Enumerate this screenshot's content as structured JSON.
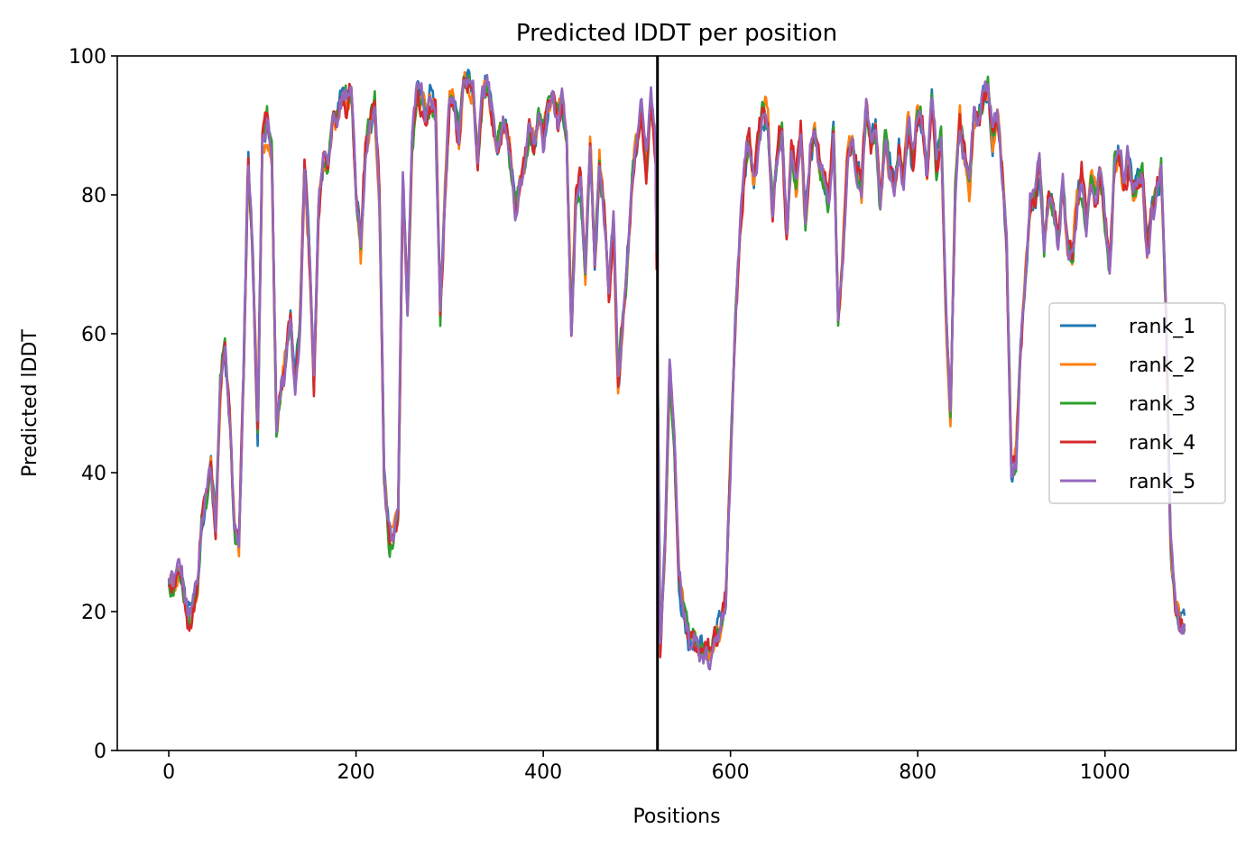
{
  "chart_data": {
    "type": "line",
    "title": "Predicted lDDT per position",
    "xlabel": "Positions",
    "ylabel": "Predicted lDDT",
    "xlim": [
      -55,
      1140
    ],
    "ylim": [
      0,
      100
    ],
    "xticks": [
      0,
      200,
      400,
      600,
      800,
      1000
    ],
    "yticks": [
      0,
      20,
      40,
      60,
      80,
      100
    ],
    "xtick_labels": [
      "0",
      "200",
      "400",
      "600",
      "800",
      "1000"
    ],
    "ytick_labels": [
      "0",
      "20",
      "40",
      "60",
      "80",
      "100"
    ],
    "vline_x": 522,
    "grid": false,
    "legend_position": "center-right",
    "base_profile": {
      "x": [
        0,
        5,
        10,
        15,
        20,
        25,
        30,
        35,
        40,
        45,
        50,
        55,
        60,
        65,
        70,
        75,
        80,
        85,
        90,
        95,
        100,
        105,
        110,
        115,
        120,
        125,
        130,
        135,
        140,
        145,
        150,
        155,
        160,
        165,
        170,
        175,
        180,
        185,
        190,
        195,
        200,
        205,
        210,
        215,
        220,
        225,
        230,
        235,
        240,
        245,
        250,
        255,
        260,
        265,
        270,
        275,
        280,
        285,
        290,
        295,
        300,
        305,
        310,
        315,
        320,
        325,
        330,
        335,
        340,
        345,
        350,
        355,
        360,
        365,
        370,
        375,
        380,
        385,
        390,
        395,
        400,
        405,
        410,
        415,
        420,
        425,
        430,
        435,
        440,
        445,
        450,
        455,
        460,
        465,
        470,
        475,
        480,
        485,
        490,
        495,
        500,
        505,
        510,
        515,
        520,
        525,
        530,
        535,
        540,
        545,
        550,
        555,
        560,
        565,
        570,
        575,
        580,
        585,
        590,
        595,
        600,
        605,
        610,
        615,
        620,
        625,
        630,
        635,
        640,
        645,
        650,
        655,
        660,
        665,
        670,
        675,
        680,
        685,
        690,
        695,
        700,
        705,
        710,
        715,
        720,
        725,
        730,
        735,
        740,
        745,
        750,
        755,
        760,
        765,
        770,
        775,
        780,
        785,
        790,
        795,
        800,
        805,
        810,
        815,
        820,
        825,
        830,
        835,
        840,
        845,
        850,
        855,
        860,
        865,
        870,
        875,
        880,
        885,
        890,
        895,
        900,
        905,
        910,
        915,
        920,
        925,
        930,
        935,
        940,
        945,
        950,
        955,
        960,
        965,
        970,
        975,
        980,
        985,
        990,
        995,
        1000,
        1005,
        1010,
        1015,
        1020,
        1025,
        1030,
        1035,
        1040,
        1045,
        1050,
        1055,
        1060,
        1065,
        1070,
        1075,
        1080,
        1085
      ],
      "y": [
        25,
        24,
        27,
        24,
        20,
        21,
        24,
        33,
        37,
        42,
        32,
        52,
        58,
        48,
        32,
        30,
        55,
        85,
        70,
        46,
        88,
        90,
        86,
        46,
        52,
        56,
        62,
        52,
        60,
        84,
        72,
        52,
        78,
        86,
        84,
        92,
        90,
        94,
        93,
        95,
        80,
        72,
        86,
        90,
        93,
        80,
        40,
        31,
        30,
        34,
        82,
        64,
        88,
        95,
        94,
        91,
        94,
        92,
        62,
        80,
        94,
        93,
        88,
        96,
        96,
        94,
        85,
        94,
        96,
        92,
        86,
        88,
        90,
        85,
        78,
        82,
        84,
        90,
        86,
        92,
        88,
        93,
        94,
        90,
        93,
        88,
        60,
        80,
        82,
        68,
        88,
        70,
        84,
        78,
        65,
        76,
        52,
        62,
        70,
        82,
        88,
        92,
        84,
        94,
        86,
        15,
        30,
        55,
        45,
        25,
        20,
        17,
        16,
        15,
        15,
        14,
        15,
        16,
        18,
        22,
        42,
        62,
        75,
        84,
        88,
        82,
        88,
        92,
        90,
        78,
        86,
        90,
        74,
        86,
        82,
        88,
        76,
        86,
        90,
        84,
        82,
        80,
        90,
        62,
        72,
        86,
        88,
        84,
        80,
        92,
        88,
        90,
        78,
        88,
        84,
        80,
        86,
        82,
        90,
        84,
        92,
        90,
        82,
        94,
        84,
        88,
        64,
        48,
        80,
        90,
        85,
        80,
        92,
        90,
        94,
        96,
        88,
        92,
        84,
        72,
        40,
        42,
        58,
        68,
        78,
        80,
        84,
        72,
        80,
        78,
        74,
        82,
        72,
        70,
        78,
        82,
        76,
        82,
        80,
        84,
        76,
        70,
        84,
        86,
        82,
        85,
        80,
        82,
        84,
        72,
        78,
        80,
        84,
        64,
        30,
        20,
        18,
        18
      ]
    },
    "series": [
      {
        "name": "rank_1",
        "color": "#1f77b4",
        "seed": 11
      },
      {
        "name": "rank_2",
        "color": "#ff7f0e",
        "seed": 23
      },
      {
        "name": "rank_3",
        "color": "#2ca02c",
        "seed": 37
      },
      {
        "name": "rank_4",
        "color": "#d62728",
        "seed": 53
      },
      {
        "name": "rank_5",
        "color": "#9467bd",
        "seed": 71
      }
    ]
  }
}
